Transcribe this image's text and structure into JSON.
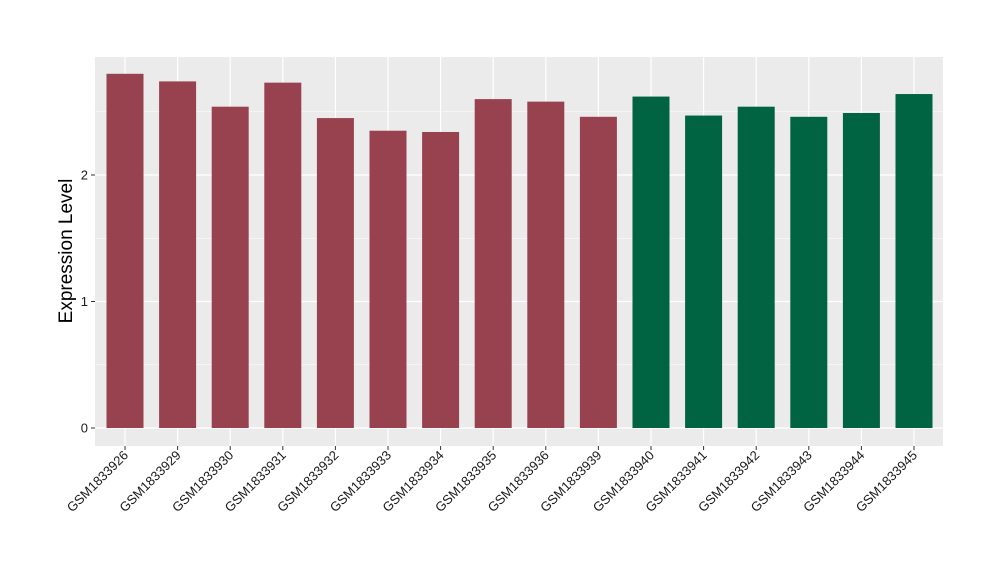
{
  "chart_data": {
    "type": "bar",
    "title": "",
    "xlabel": "",
    "ylabel": "Expression Level",
    "ylim": [
      0,
      2.9
    ],
    "yticks": [
      0,
      1,
      2
    ],
    "grid": true,
    "legend": "none",
    "categories": [
      "GSM1833926",
      "GSM1833929",
      "GSM1833930",
      "GSM1833931",
      "GSM1833932",
      "GSM1833933",
      "GSM1833934",
      "GSM1833935",
      "GSM1833936",
      "GSM1833939",
      "GSM1833940",
      "GSM1833941",
      "GSM1833942",
      "GSM1833943",
      "GSM1833944",
      "GSM1833945"
    ],
    "values": [
      2.8,
      2.74,
      2.54,
      2.73,
      2.45,
      2.35,
      2.34,
      2.6,
      2.58,
      2.46,
      2.62,
      2.47,
      2.54,
      2.46,
      2.49,
      2.64
    ],
    "bar_colors": [
      "#99424F",
      "#99424F",
      "#99424F",
      "#99424F",
      "#99424F",
      "#99424F",
      "#99424F",
      "#99424F",
      "#99424F",
      "#99424F",
      "#006342",
      "#006342",
      "#006342",
      "#006342",
      "#006342",
      "#006342"
    ],
    "panel_background": "#EBEBEB",
    "grid_color": "#FFFFFF"
  }
}
